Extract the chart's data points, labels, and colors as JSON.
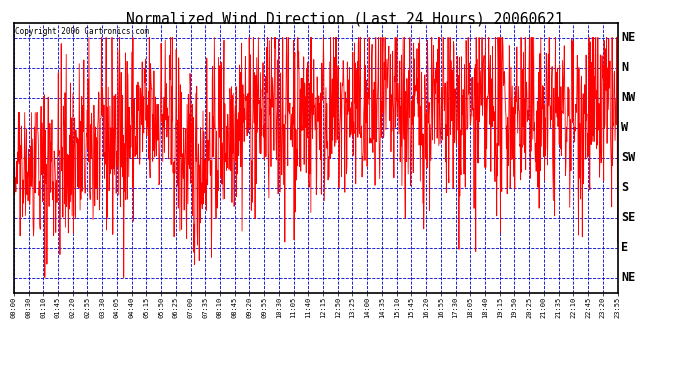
{
  "title": "Normalized Wind Direction (Last 24 Hours) 20060621",
  "copyright_text": "Copyright 2006 Cartronics.com",
  "y_labels": [
    "NE",
    "N",
    "NW",
    "W",
    "SW",
    "S",
    "SE",
    "E",
    "NE"
  ],
  "y_values": [
    8,
    7,
    6,
    5,
    4,
    3,
    2,
    1,
    0
  ],
  "ylim": [
    -0.5,
    8.5
  ],
  "line_color": "#ff0000",
  "grid_color": "#0000cc",
  "background_color": "#ffffff",
  "outer_background": "#ffffff",
  "title_color": "#000000",
  "x_tick_labels": [
    "00:00",
    "00:30",
    "01:10",
    "01:45",
    "02:20",
    "02:55",
    "03:30",
    "04:05",
    "04:40",
    "05:15",
    "05:50",
    "06:25",
    "07:00",
    "07:35",
    "08:10",
    "08:45",
    "09:20",
    "09:55",
    "10:30",
    "11:05",
    "11:40",
    "12:15",
    "12:50",
    "13:25",
    "14:00",
    "14:35",
    "15:10",
    "15:45",
    "16:20",
    "16:55",
    "17:30",
    "18:05",
    "18:40",
    "19:15",
    "19:50",
    "20:25",
    "21:00",
    "21:35",
    "22:10",
    "22:45",
    "23:20",
    "23:55"
  ],
  "num_points": 1440,
  "seed": 42,
  "line_width": 0.6
}
